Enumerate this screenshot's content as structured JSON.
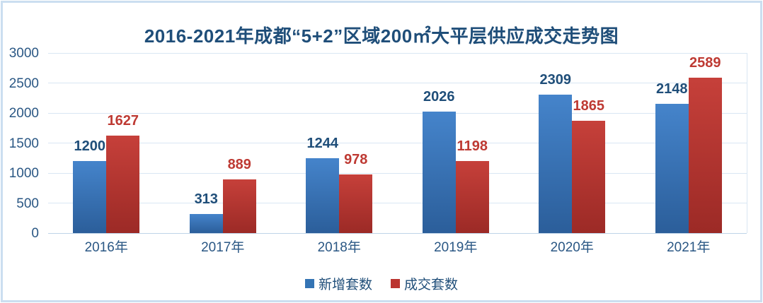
{
  "page": {
    "background": "#FFFFFF",
    "frame_border_color": "#CBDEF0"
  },
  "chart_data": {
    "type": "bar",
    "title": "2016-2021年成都“5+2”区域200㎡大平层供应成交走势图",
    "title_color": "#1F4E79",
    "categories": [
      "2016年",
      "2017年",
      "2018年",
      "2019年",
      "2020年",
      "2021年"
    ],
    "series": [
      {
        "name": "新增套数",
        "values": [
          1200,
          313,
          1244,
          2026,
          2309,
          2148
        ],
        "bar_gradient_top": "#4584CB",
        "bar_gradient_bottom": "#2B5E9A",
        "label_color": "#1F4E79",
        "legend_color": "#3474B4"
      },
      {
        "name": "成交套数",
        "values": [
          1627,
          889,
          978,
          1198,
          1865,
          2589
        ],
        "bar_gradient_top": "#C6403A",
        "bar_gradient_bottom": "#9C2A26",
        "label_color": "#BE3A33",
        "legend_color": "#BB342F"
      }
    ],
    "ylim": [
      0,
      3000
    ],
    "yticks": [
      0,
      500,
      1000,
      1500,
      2000,
      2500,
      3000
    ],
    "tick_label_color": "#2A5784",
    "gridline_color": "#D9E6F3",
    "axis_line_color": "#BFD4E8",
    "grid": "horizontal",
    "legend_position": "bottom",
    "data_labels": true
  }
}
